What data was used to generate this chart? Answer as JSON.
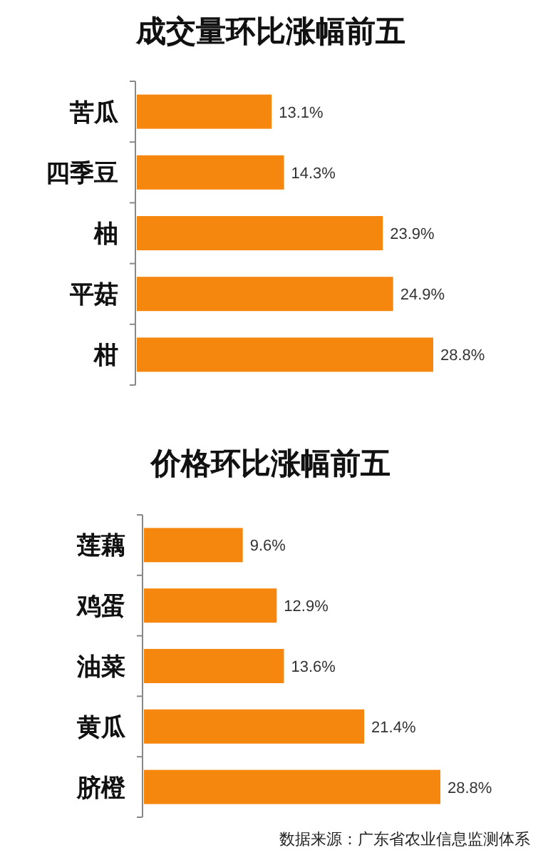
{
  "chart_data": [
    {
      "type": "bar",
      "orientation": "horizontal",
      "title": "成交量环比涨幅前五",
      "categories": [
        "苦瓜",
        "四季豆",
        "柚",
        "平菇",
        "柑"
      ],
      "values": [
        13.1,
        14.3,
        23.9,
        24.9,
        28.8
      ],
      "value_labels": [
        "13.1%",
        "14.3%",
        "23.9%",
        "24.9%",
        "28.8%"
      ],
      "color": "#f5870f"
    },
    {
      "type": "bar",
      "orientation": "horizontal",
      "title": "价格环比涨幅前五",
      "categories": [
        "莲藕",
        "鸡蛋",
        "油菜",
        "黄瓜",
        "脐橙"
      ],
      "values": [
        9.6,
        12.9,
        13.6,
        21.4,
        28.8
      ],
      "value_labels": [
        "9.6%",
        "12.9%",
        "13.6%",
        "21.4%",
        "28.8%"
      ],
      "color": "#f5870f",
      "annotations": [
        "数据来源：广东省农业信息监测体系"
      ]
    }
  ]
}
